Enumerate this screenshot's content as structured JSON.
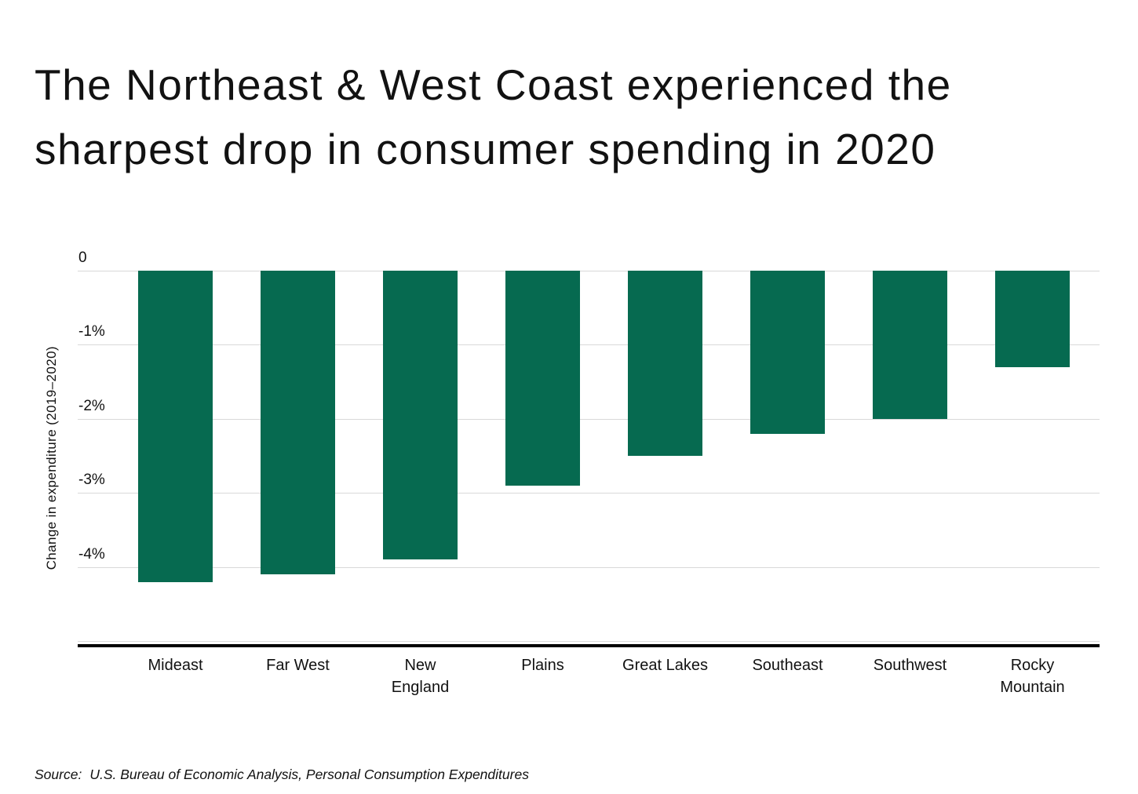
{
  "title": "The Northeast & West Coast experienced the sharpest drop in consumer spending in 2020",
  "source": {
    "prefix": "Source:",
    "text": "U.S. Bureau of Economic Analysis, Personal Consumption Expenditures"
  },
  "chart_data": {
    "type": "bar",
    "title": "The Northeast & West Coast experienced the sharpest drop in consumer spending in 2020",
    "categories": [
      "Mideast",
      "Far West",
      "New England",
      "Plains",
      "Great Lakes",
      "Southeast",
      "Southwest",
      "Rocky Mountain"
    ],
    "category_labels": [
      "Mideast",
      "Far West",
      "New\nEngland",
      "Plains",
      "Great Lakes",
      "Southeast",
      "Southwest",
      "Rocky\nMountain"
    ],
    "values": [
      -4.2,
      -4.1,
      -3.9,
      -2.9,
      -2.5,
      -2.2,
      -2.0,
      -1.3
    ],
    "unit": "%",
    "xlabel": "",
    "ylabel": "Change in expenditure (2019–2020)",
    "ylim": [
      0,
      -5.05
    ],
    "yticks": [
      {
        "value": 0,
        "label": "0"
      },
      {
        "value": -1,
        "label": "-1%"
      },
      {
        "value": -2,
        "label": "-2%"
      },
      {
        "value": -3,
        "label": "-3%"
      },
      {
        "value": -4,
        "label": "-4%"
      },
      {
        "value": -5,
        "label": ""
      }
    ],
    "grid": true,
    "legend": false,
    "bar_color": "#066A50",
    "gridline_color": "#d9d9d9",
    "axis_line_color": "#000000"
  }
}
